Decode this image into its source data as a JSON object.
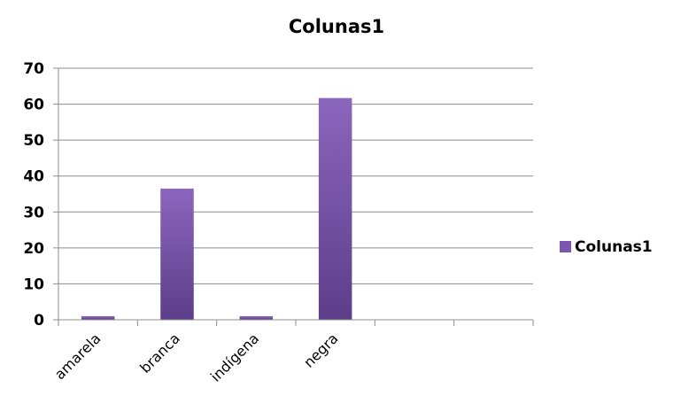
{
  "chart_data": {
    "type": "bar",
    "title": "Colunas1",
    "categories": [
      "amarela",
      "branca",
      "indígena",
      "negra",
      "",
      ""
    ],
    "series": [
      {
        "name": "Colunas1",
        "values": [
          1,
          36.5,
          1,
          61.7,
          null,
          null
        ]
      }
    ],
    "ylim": [
      0,
      70
    ],
    "yticks": [
      0,
      10,
      20,
      30,
      40,
      50,
      60,
      70
    ],
    "grid": true,
    "legend_position": "right",
    "colors": {
      "bar_top": "#8b66bd",
      "bar_bottom": "#5d3e8a",
      "legend_swatch": "#7a56b0",
      "grid": "#8c8c8c",
      "axis": "#8c8c8c"
    }
  }
}
